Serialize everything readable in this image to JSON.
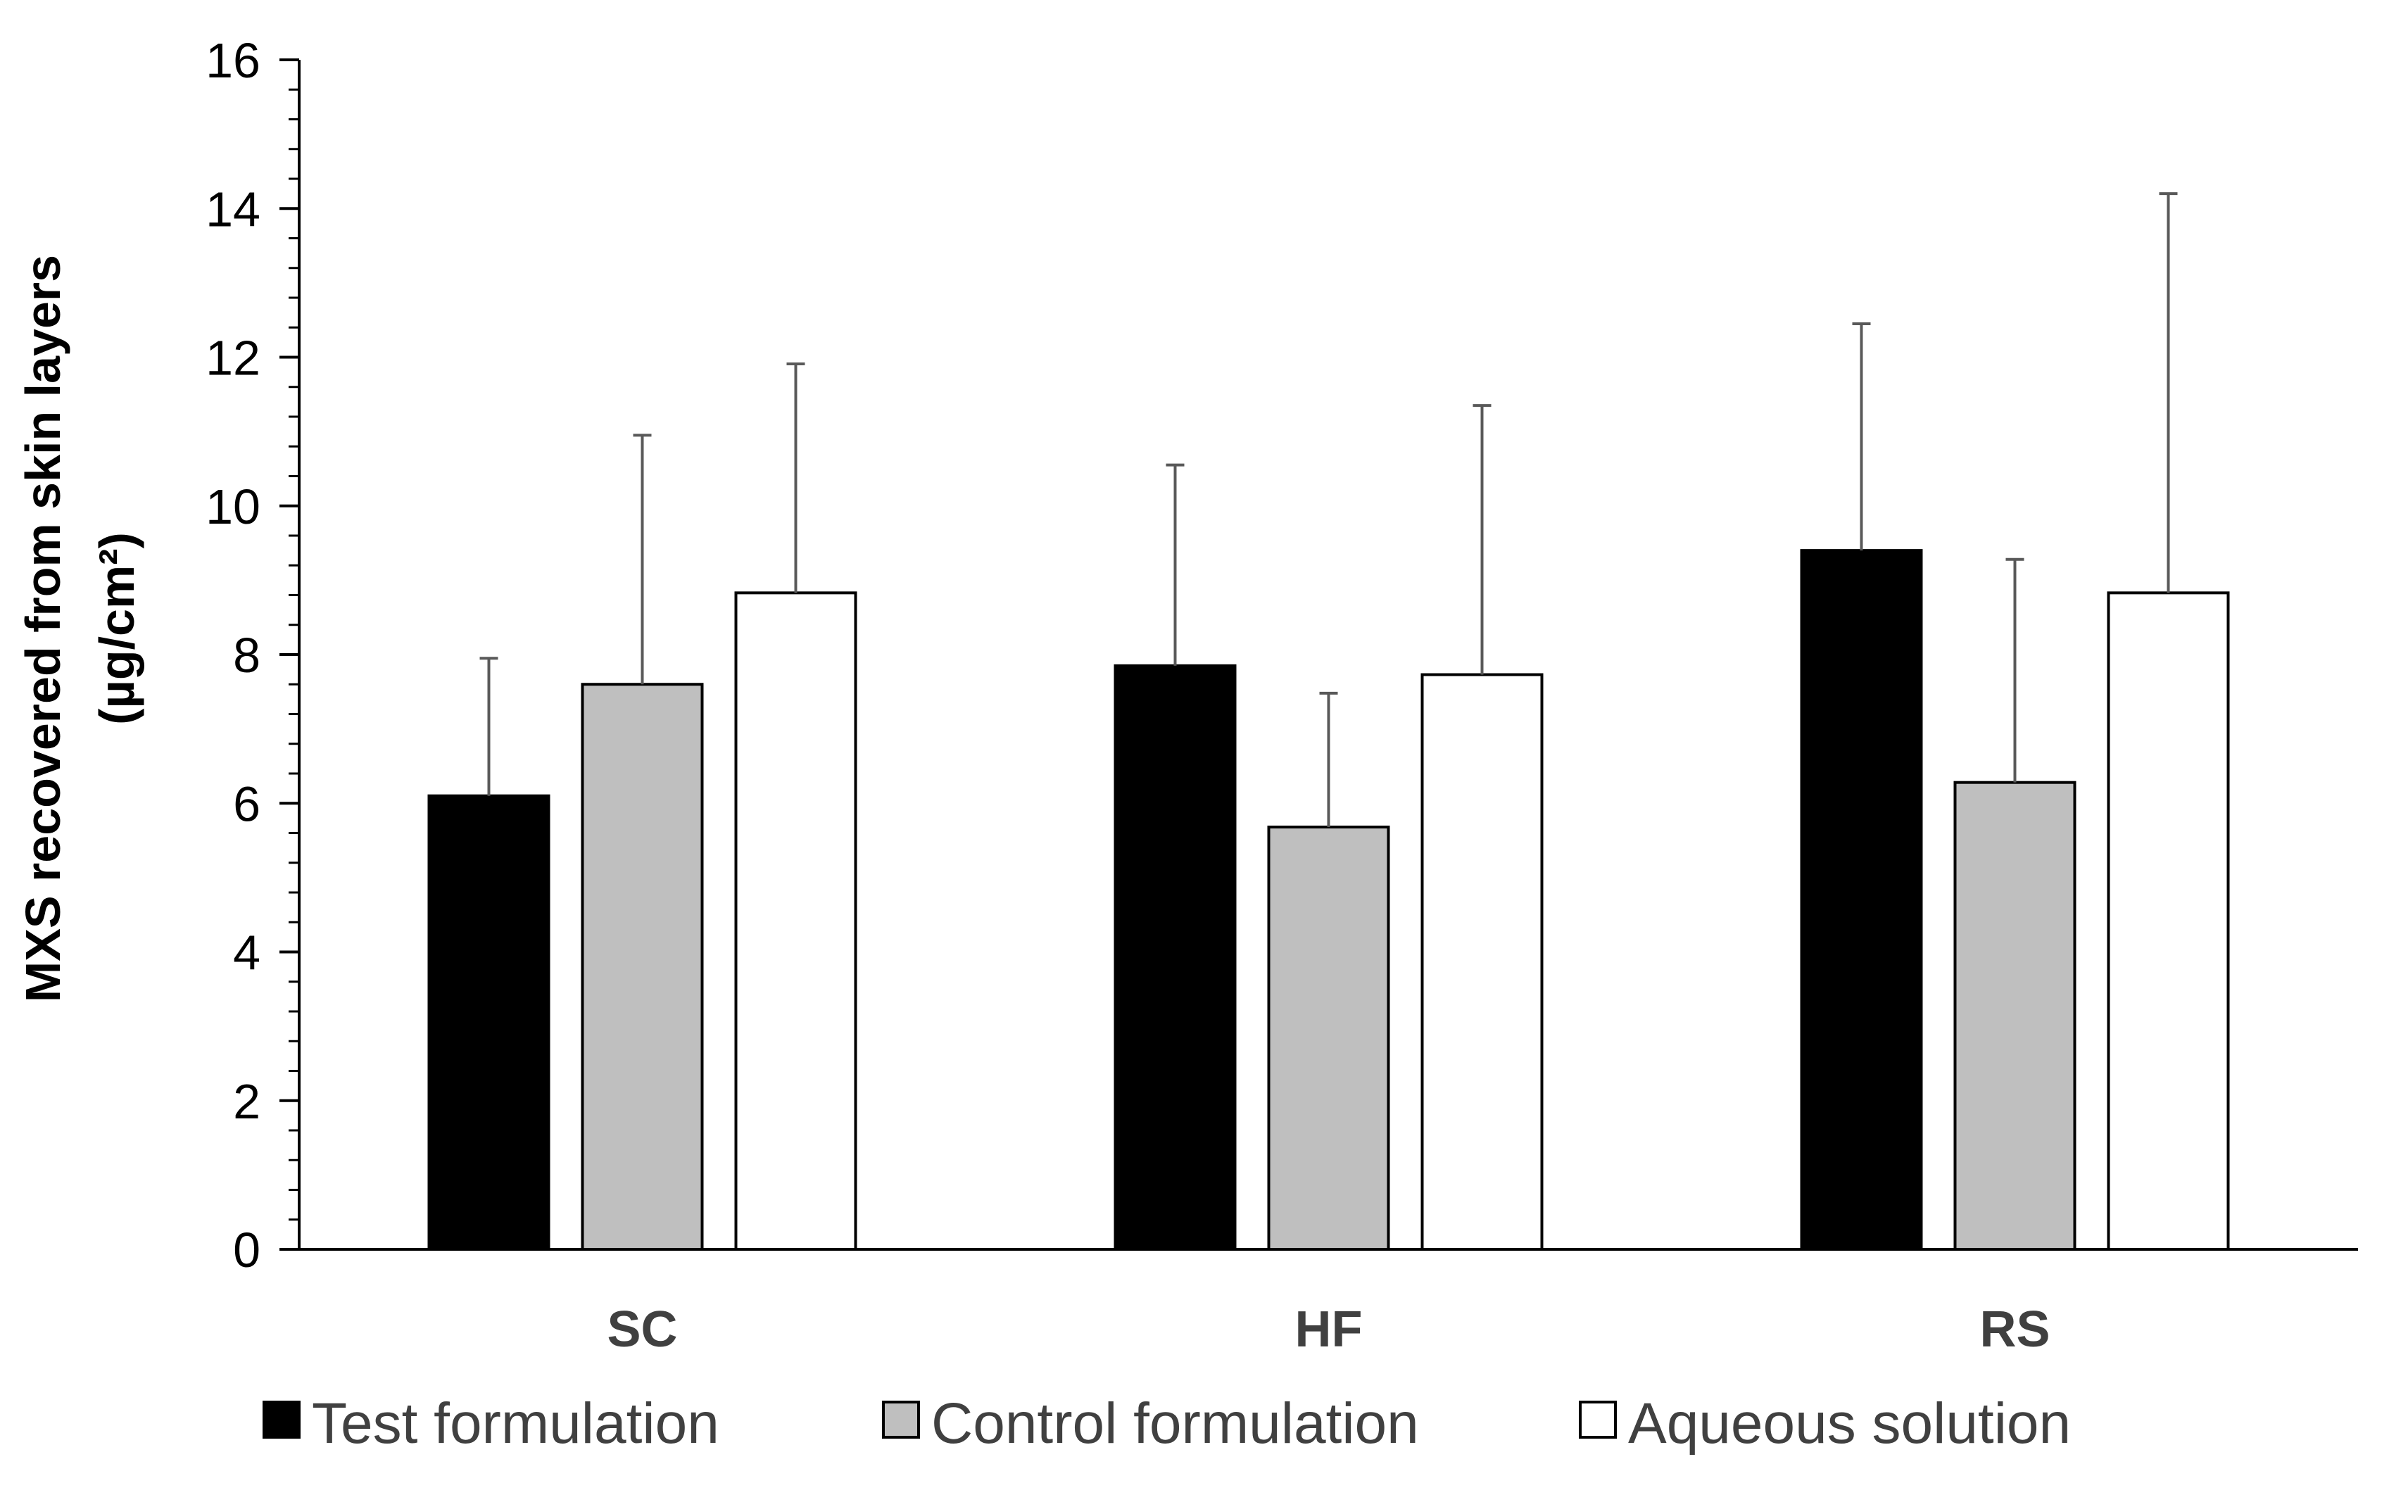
{
  "chart_data": {
    "type": "bar",
    "title": "",
    "xlabel": "",
    "ylabel_line1": "MXS recovered from skin layers",
    "ylabel_line2": "(µg/cm²)",
    "ylim": [
      0,
      16
    ],
    "yticks": [
      0,
      2,
      4,
      6,
      8,
      10,
      12,
      14,
      16
    ],
    "ytick_labels": [
      "0",
      "2",
      "4",
      "6",
      "8",
      "10",
      "12",
      "14",
      "16"
    ],
    "minor_tick_step": 0.4,
    "grid": false,
    "legend_position": "bottom",
    "categories": [
      "SC",
      "HF",
      "RS"
    ],
    "series": [
      {
        "name": "Test formulation",
        "color": "#000000",
        "values": [
          6.1,
          7.85,
          9.4
        ],
        "errors": [
          1.85,
          2.7,
          3.05
        ]
      },
      {
        "name": "Control formulation",
        "color": "#bfbfbf",
        "values": [
          7.6,
          5.68,
          6.28
        ],
        "errors": [
          3.35,
          1.8,
          3.0
        ]
      },
      {
        "name": "Aqueous solution",
        "color": "#ffffff",
        "values": [
          8.83,
          7.73,
          8.83
        ],
        "errors": [
          3.08,
          3.62,
          5.37
        ]
      }
    ]
  }
}
